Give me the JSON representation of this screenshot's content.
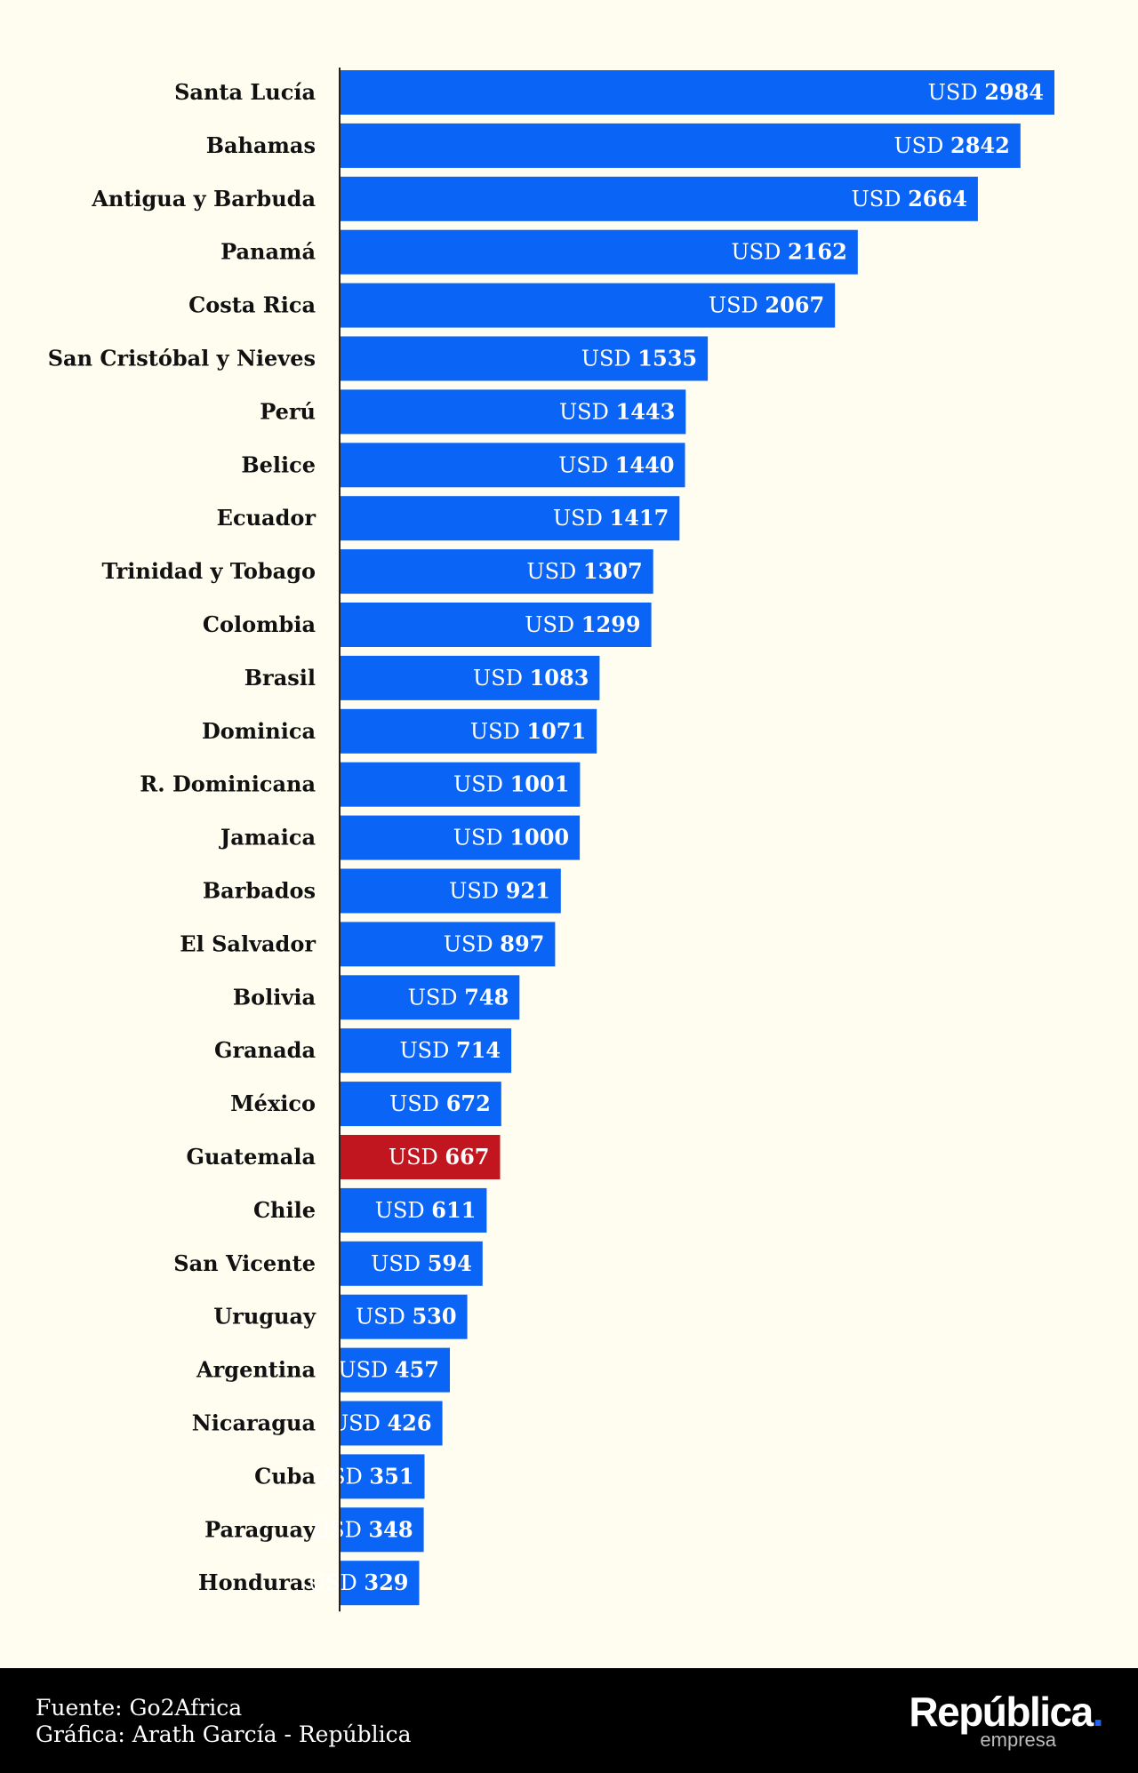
{
  "chart_data": {
    "type": "bar",
    "orientation": "horizontal",
    "categories": [
      "Santa Lucía",
      "Bahamas",
      "Antigua y Barbuda",
      "Panamá",
      "Costa Rica",
      "San Cristóbal y Nieves",
      "Perú",
      "Belice",
      "Ecuador",
      "Trinidad y Tobago",
      "Colombia",
      "Brasil",
      "Dominica",
      "R. Dominicana",
      "Jamaica",
      "Barbados",
      "El Salvador",
      "Bolivia",
      "Granada",
      "México",
      "Guatemala",
      "Chile",
      "San Vicente",
      "Uruguay",
      "Argentina",
      "Nicaragua",
      "Cuba",
      "Paraguay",
      "Honduras"
    ],
    "values": [
      2984,
      2842,
      2664,
      2162,
      2067,
      1535,
      1443,
      1440,
      1417,
      1307,
      1299,
      1083,
      1071,
      1001,
      1000,
      921,
      897,
      748,
      714,
      672,
      667,
      611,
      594,
      530,
      457,
      426,
      351,
      348,
      329
    ],
    "value_prefix": "USD",
    "highlight": "Guatemala",
    "colors": {
      "bar": "#0a64f5",
      "highlight": "#c1161f",
      "axis": "#222222"
    },
    "title": "",
    "xlabel": "",
    "ylabel": "",
    "grid": false,
    "legend": "none"
  },
  "footer": {
    "source": "Fuente: Go2Africa",
    "credit": "Gráfica: Arath García - República"
  },
  "logo": {
    "name": "República",
    "dot": ".",
    "sub": "empresa"
  }
}
